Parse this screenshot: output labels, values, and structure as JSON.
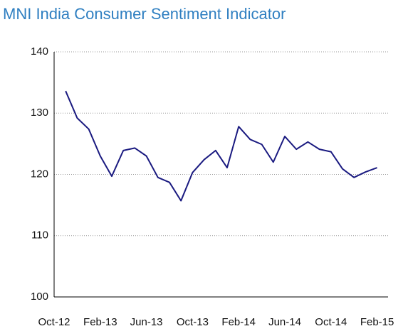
{
  "chart_data": {
    "type": "line",
    "title": "MNI India Consumer Sentiment Indicator",
    "categories": [
      "Oct-12",
      null,
      null,
      null,
      "Feb-13",
      null,
      null,
      null,
      "Jun-13",
      null,
      null,
      null,
      "Oct-13",
      null,
      null,
      null,
      "Feb-14",
      null,
      null,
      null,
      "Jun-14",
      null,
      null,
      null,
      "Oct-14",
      null,
      null,
      null,
      "Feb-15"
    ],
    "series": [
      {
        "name": "MNI India Consumer Sentiment Indicator",
        "color": "#1a1a80",
        "values": [
          null,
          133.6,
          129.2,
          127.4,
          123.0,
          119.7,
          123.9,
          124.3,
          123.0,
          119.5,
          118.7,
          115.7,
          120.3,
          122.4,
          123.9,
          121.1,
          127.8,
          125.7,
          124.9,
          122.0,
          126.2,
          124.1,
          125.3,
          124.1,
          123.7,
          120.9,
          119.5,
          120.4,
          121.1
        ]
      }
    ],
    "ylim": [
      100,
      140
    ],
    "yticks": [
      100,
      110,
      120,
      130,
      140
    ],
    "grid": true
  }
}
